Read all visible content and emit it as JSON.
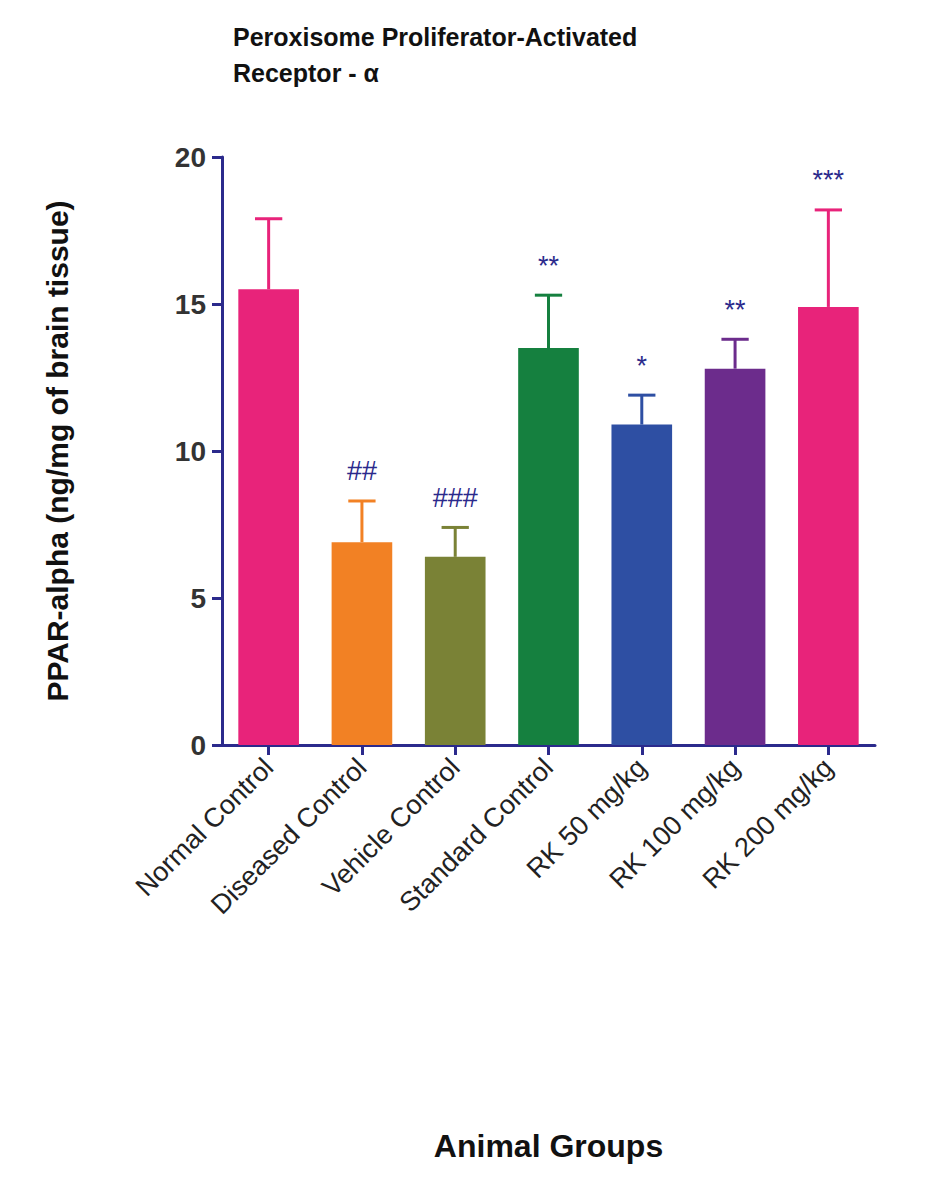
{
  "chart_data": {
    "type": "bar",
    "title": "Peroxisome Proliferator-Activated\nReceptor - α",
    "x_label": "Animal Groups",
    "y_label": "PPAR-alpha (ng/mg of brain tissue)",
    "categories": [
      "Normal Control",
      "Diseased Control",
      "Vehicle Control",
      "Standard Control",
      "RK 50 mg/kg",
      "RK 100 mg/kg",
      "RK 200 mg/kg"
    ],
    "values": [
      15.5,
      6.9,
      6.4,
      13.5,
      10.9,
      12.8,
      14.9
    ],
    "errors": [
      2.4,
      1.4,
      1.0,
      1.8,
      1.0,
      1.0,
      3.3
    ],
    "annotations": [
      null,
      "##",
      "###",
      "**",
      "*",
      "**",
      "***"
    ],
    "colors": [
      "#e8237a",
      "#f28124",
      "#7a8236",
      "#15803f",
      "#2e4fa3",
      "#6c2c8c",
      "#e8237a"
    ],
    "ylim": [
      0,
      20
    ],
    "yticks": [
      0,
      5,
      10,
      15,
      20
    ],
    "grid": false
  }
}
